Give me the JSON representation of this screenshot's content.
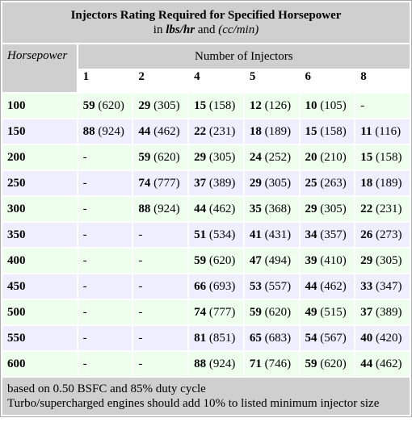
{
  "title": {
    "heading": "Injectors Rating Required for Specified Horsepower",
    "prefix": "in",
    "unit1": "lbs/hr",
    "joiner": "and",
    "unit2": "(cc/min)"
  },
  "header": {
    "group": "Number of Injectors",
    "row_label": "Horsepower",
    "columns": [
      "1",
      "2",
      "4",
      "5",
      "6",
      "8"
    ]
  },
  "rows": [
    {
      "hp": "100",
      "cells": [
        {
          "lbs": "59",
          "cc": "(620)"
        },
        {
          "lbs": "29",
          "cc": "(305)"
        },
        {
          "lbs": "15",
          "cc": "(158)"
        },
        {
          "lbs": "12",
          "cc": "(126)"
        },
        {
          "lbs": "10",
          "cc": "(105)"
        },
        "-"
      ]
    },
    {
      "hp": "150",
      "cells": [
        {
          "lbs": "88",
          "cc": "(924)"
        },
        {
          "lbs": "44",
          "cc": "(462)"
        },
        {
          "lbs": "22",
          "cc": "(231)"
        },
        {
          "lbs": "18",
          "cc": "(189)"
        },
        {
          "lbs": "15",
          "cc": "(158)"
        },
        {
          "lbs": "11",
          "cc": "(116)"
        }
      ]
    },
    {
      "hp": "200",
      "cells": [
        "-",
        {
          "lbs": "59",
          "cc": "(620)"
        },
        {
          "lbs": "29",
          "cc": "(305)"
        },
        {
          "lbs": "24",
          "cc": "(252)"
        },
        {
          "lbs": "20",
          "cc": "(210)"
        },
        {
          "lbs": "15",
          "cc": "(158)"
        }
      ]
    },
    {
      "hp": "250",
      "cells": [
        "-",
        {
          "lbs": "74",
          "cc": "(777)"
        },
        {
          "lbs": "37",
          "cc": "(389)"
        },
        {
          "lbs": "29",
          "cc": "(305)"
        },
        {
          "lbs": "25",
          "cc": "(263)"
        },
        {
          "lbs": "18",
          "cc": "(189)"
        }
      ]
    },
    {
      "hp": "300",
      "cells": [
        "-",
        {
          "lbs": "88",
          "cc": "(924)"
        },
        {
          "lbs": "44",
          "cc": "(462)"
        },
        {
          "lbs": "35",
          "cc": "(368)"
        },
        {
          "lbs": "29",
          "cc": "(305)"
        },
        {
          "lbs": "22",
          "cc": "(231)"
        }
      ]
    },
    {
      "hp": "350",
      "cells": [
        "-",
        "-",
        {
          "lbs": "51",
          "cc": "(534)"
        },
        {
          "lbs": "41",
          "cc": "(431)"
        },
        {
          "lbs": "34",
          "cc": "(357)"
        },
        {
          "lbs": "26",
          "cc": "(273)"
        }
      ]
    },
    {
      "hp": "400",
      "cells": [
        "-",
        "-",
        {
          "lbs": "59",
          "cc": "(620)"
        },
        {
          "lbs": "47",
          "cc": "(494)"
        },
        {
          "lbs": "39",
          "cc": "(410)"
        },
        {
          "lbs": "29",
          "cc": "(305)"
        }
      ]
    },
    {
      "hp": "450",
      "cells": [
        "-",
        "-",
        {
          "lbs": "66",
          "cc": "(693)"
        },
        {
          "lbs": "53",
          "cc": "(557)"
        },
        {
          "lbs": "44",
          "cc": "(462)"
        },
        {
          "lbs": "33",
          "cc": "(347)"
        }
      ]
    },
    {
      "hp": "500",
      "cells": [
        "-",
        "-",
        {
          "lbs": "74",
          "cc": "(777)"
        },
        {
          "lbs": "59",
          "cc": "(620)"
        },
        {
          "lbs": "49",
          "cc": "(515)"
        },
        {
          "lbs": "37",
          "cc": "(389)"
        }
      ]
    },
    {
      "hp": "550",
      "cells": [
        "-",
        "-",
        {
          "lbs": "81",
          "cc": "(851)"
        },
        {
          "lbs": "65",
          "cc": "(683)"
        },
        {
          "lbs": "54",
          "cc": "(567)"
        },
        {
          "lbs": "40",
          "cc": "(420)"
        }
      ]
    },
    {
      "hp": "600",
      "cells": [
        "-",
        "-",
        {
          "lbs": "88",
          "cc": "(924)"
        },
        {
          "lbs": "71",
          "cc": "(746)"
        },
        {
          "lbs": "59",
          "cc": "(620)"
        },
        {
          "lbs": "44",
          "cc": "(462)"
        }
      ]
    }
  ],
  "footer": {
    "lines": [
      "based on 0.50 BSFC and 85% duty cycle",
      "Turbo/supercharged engines should add 10% to listed minimum injector size"
    ]
  }
}
